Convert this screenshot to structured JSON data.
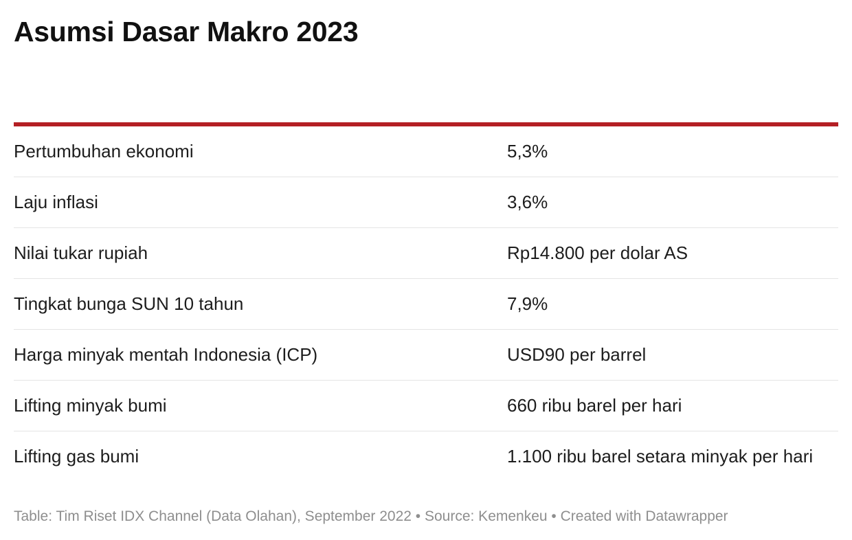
{
  "title": "Asumsi Dasar Makro 2023",
  "accent_color": "#b41f24",
  "chart_data": {
    "type": "table",
    "title": "Asumsi Dasar Makro 2023",
    "rows": [
      {
        "label": "Pertumbuhan ekonomi",
        "value": "5,3%"
      },
      {
        "label": "Laju inflasi",
        "value": "3,6%"
      },
      {
        "label": "Nilai tukar rupiah",
        "value": "Rp14.800 per dolar AS"
      },
      {
        "label": "Tingkat bunga SUN 10 tahun",
        "value": "7,9%"
      },
      {
        "label": "Harga minyak mentah Indonesia (ICP)",
        "value": "USD90 per barrel"
      },
      {
        "label": "Lifting minyak bumi",
        "value": "660 ribu barel per hari"
      },
      {
        "label": "Lifting gas bumi",
        "value": "1.100 ribu barel setara minyak per hari"
      }
    ]
  },
  "footer": {
    "text": "Table: Tim Riset IDX Channel (Data Olahan), September 2022 • Source: Kemenkeu • Created with Datawrapper"
  }
}
